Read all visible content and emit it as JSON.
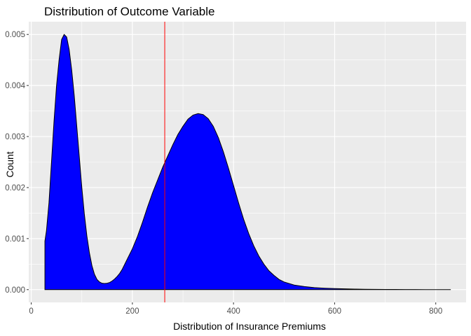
{
  "chart_data": {
    "type": "area",
    "title": "Distribution of Outcome Variable",
    "xlabel": "Distribution of Insurance Premiums",
    "ylabel": "Count",
    "xlim": [
      -5,
      860
    ],
    "ylim": [
      -0.00025,
      0.00525
    ],
    "x_ticks": [
      0,
      200,
      400,
      600,
      800
    ],
    "x_tick_labels": [
      "0",
      "200",
      "400",
      "600",
      "800"
    ],
    "y_ticks": [
      0,
      0.001,
      0.002,
      0.003,
      0.004,
      0.005
    ],
    "y_tick_labels": [
      "0.000",
      "0.001",
      "0.002",
      "0.003",
      "0.004",
      "0.005"
    ],
    "grid": true,
    "reference_line": {
      "x": 264,
      "color": "#ff0000"
    },
    "fill_color": "#0000ff",
    "outline_color": "#000000",
    "panel_background": "#ebebeb",
    "series": [
      {
        "x": [
          27,
          30,
          35,
          40,
          45,
          50,
          55,
          60,
          65,
          70,
          75,
          80,
          85,
          90,
          95,
          100,
          105,
          110,
          115,
          120,
          125,
          130,
          135,
          140,
          145,
          150,
          155,
          160,
          165,
          170,
          175,
          180,
          190,
          200,
          210,
          220,
          230,
          240,
          250,
          260,
          270,
          280,
          290,
          300,
          310,
          320,
          330,
          340,
          350,
          360,
          370,
          380,
          390,
          400,
          410,
          420,
          430,
          440,
          450,
          460,
          470,
          480,
          490,
          500,
          520,
          540,
          560,
          580,
          600,
          620,
          640,
          660,
          680,
          700,
          720,
          740,
          760,
          780,
          800,
          829
        ],
        "y": [
          0.00095,
          0.00115,
          0.0017,
          0.0025,
          0.0033,
          0.004,
          0.0045,
          0.0049,
          0.005,
          0.00495,
          0.0047,
          0.0043,
          0.0038,
          0.0032,
          0.0026,
          0.002,
          0.00148,
          0.00105,
          0.00072,
          0.00047,
          0.0003,
          0.0002,
          0.00015,
          0.000125,
          0.00012,
          0.000125,
          0.00014,
          0.00017,
          0.00021,
          0.00026,
          0.00032,
          0.0004,
          0.0006,
          0.0008,
          0.00104,
          0.00132,
          0.00162,
          0.0019,
          0.00215,
          0.0024,
          0.00262,
          0.00284,
          0.00304,
          0.0032,
          0.00334,
          0.00342,
          0.00345,
          0.00343,
          0.00335,
          0.0032,
          0.00298,
          0.0027,
          0.00238,
          0.00204,
          0.0017,
          0.00138,
          0.0011,
          0.00086,
          0.00066,
          0.0005,
          0.00037,
          0.00028,
          0.0002,
          0.00015,
          9e-05,
          6e-05,
          4e-05,
          2.8e-05,
          2e-05,
          1.5e-05,
          1.1e-05,
          8e-06,
          6e-06,
          4e-06,
          3e-06,
          2e-06,
          1.5e-06,
          1e-06,
          6e-07,
          2e-07
        ]
      }
    ]
  }
}
